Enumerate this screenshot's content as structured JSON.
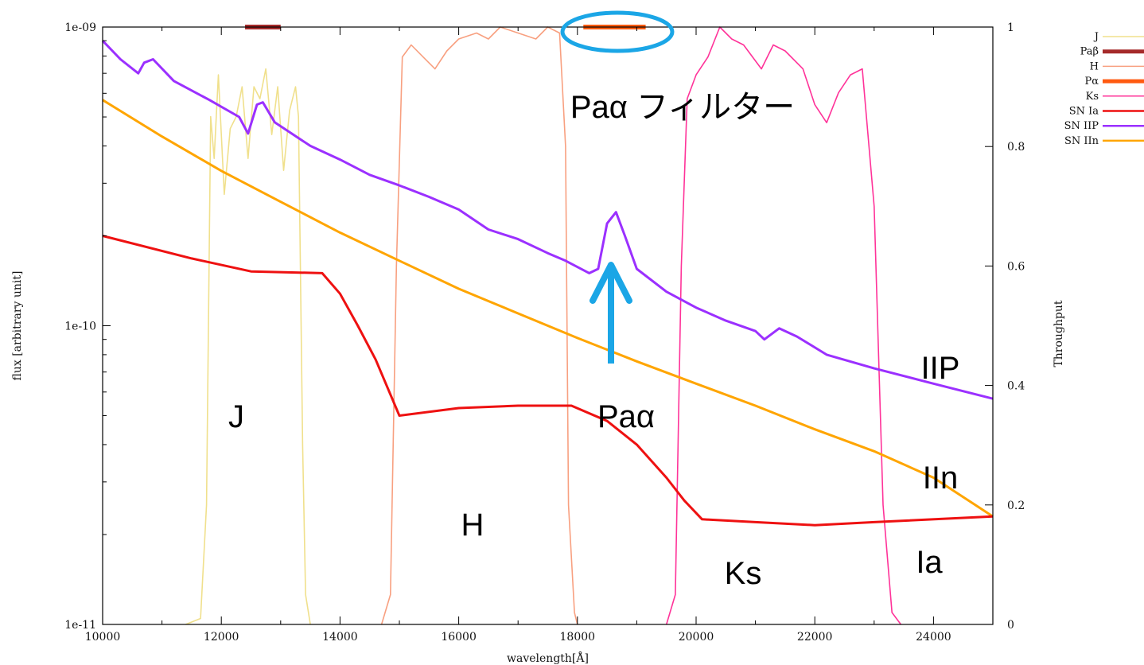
{
  "chart_data": {
    "type": "line",
    "xlabel": "wavelength[Å]",
    "ylabel": "flux [arbitrary unit]",
    "y2label": "Throughput",
    "xlim": [
      10000,
      25000
    ],
    "ylim": [
      1e-11,
      1e-09
    ],
    "yscale": "log",
    "y2lim": [
      0,
      1
    ],
    "grid": false,
    "legend_position": "top-right (outside plot)",
    "x_ticks": [
      "10000",
      "12000",
      "14000",
      "16000",
      "18000",
      "20000",
      "22000",
      "24000"
    ],
    "y_ticks": [
      "1e-11",
      "1e-10",
      "1e-09"
    ],
    "y2_ticks": [
      "0",
      "0.2",
      "0.4",
      "0.6",
      "0.8",
      "1"
    ],
    "legend": [
      {
        "label": "J",
        "color": "#f0e08c",
        "style": "thin"
      },
      {
        "label": "Paβ",
        "color": "#a52a2a",
        "style": "bar"
      },
      {
        "label": "H",
        "color": "#f8a080",
        "style": "thin"
      },
      {
        "label": "Pα",
        "color": "#ff5a10",
        "style": "bar"
      },
      {
        "label": "Ks",
        "color": "#ff3399",
        "style": "thin"
      },
      {
        "label": "SN Ia",
        "color": "#ee1111",
        "style": "thick"
      },
      {
        "label": "SN IIP",
        "color": "#9b30ff",
        "style": "thick"
      },
      {
        "label": "SN IIn",
        "color": "#ffa500",
        "style": "thick"
      }
    ],
    "series": [
      {
        "name": "SN IIP",
        "axis": "left",
        "color": "#9b30ff",
        "points": [
          [
            10000,
            9e-10
          ],
          [
            10300,
            7.8e-10
          ],
          [
            10600,
            7e-10
          ],
          [
            10700,
            7.6e-10
          ],
          [
            10850,
            7.8e-10
          ],
          [
            11200,
            6.6e-10
          ],
          [
            11800,
            5.7e-10
          ],
          [
            12300,
            5e-10
          ],
          [
            12450,
            4.4e-10
          ],
          [
            12600,
            5.5e-10
          ],
          [
            12700,
            5.6e-10
          ],
          [
            12900,
            4.8e-10
          ],
          [
            13500,
            4e-10
          ],
          [
            14000,
            3.6e-10
          ],
          [
            14500,
            3.2e-10
          ],
          [
            15000,
            2.95e-10
          ],
          [
            15500,
            2.7e-10
          ],
          [
            16000,
            2.45e-10
          ],
          [
            16500,
            2.1e-10
          ],
          [
            17000,
            1.95e-10
          ],
          [
            17500,
            1.75e-10
          ],
          [
            17800,
            1.65e-10
          ],
          [
            18200,
            1.5e-10
          ],
          [
            18350,
            1.55e-10
          ],
          [
            18500,
            2.2e-10
          ],
          [
            18650,
            2.4e-10
          ],
          [
            18800,
            2e-10
          ],
          [
            19000,
            1.55e-10
          ],
          [
            19500,
            1.3e-10
          ],
          [
            20000,
            1.15e-10
          ],
          [
            20500,
            1.04e-10
          ],
          [
            21000,
            9.6e-11
          ],
          [
            21150,
            9e-11
          ],
          [
            21400,
            9.8e-11
          ],
          [
            21700,
            9.2e-11
          ],
          [
            22200,
            8e-11
          ],
          [
            23000,
            7.2e-11
          ],
          [
            24000,
            6.4e-11
          ],
          [
            25000,
            5.7e-11
          ]
        ]
      },
      {
        "name": "SN IIn",
        "axis": "left",
        "color": "#ffa500",
        "points": [
          [
            10000,
            5.7e-10
          ],
          [
            11000,
            4.3e-10
          ],
          [
            12000,
            3.3e-10
          ],
          [
            13000,
            2.6e-10
          ],
          [
            14000,
            2.05e-10
          ],
          [
            15000,
            1.65e-10
          ],
          [
            16000,
            1.33e-10
          ],
          [
            17000,
            1.1e-10
          ],
          [
            18000,
            9.1e-11
          ],
          [
            19000,
            7.6e-11
          ],
          [
            20000,
            6.4e-11
          ],
          [
            21000,
            5.4e-11
          ],
          [
            22000,
            4.5e-11
          ],
          [
            23000,
            3.8e-11
          ],
          [
            24000,
            3.1e-11
          ],
          [
            25000,
            2.3e-11
          ]
        ]
      },
      {
        "name": "SN Ia",
        "axis": "left",
        "color": "#ee1111",
        "points": [
          [
            10000,
            2e-10
          ],
          [
            11500,
            1.68e-10
          ],
          [
            12500,
            1.52e-10
          ],
          [
            13700,
            1.5e-10
          ],
          [
            14000,
            1.28e-10
          ],
          [
            14300,
            1e-10
          ],
          [
            14600,
            7.7e-11
          ],
          [
            15000,
            5e-11
          ],
          [
            16000,
            5.3e-11
          ],
          [
            17000,
            5.4e-11
          ],
          [
            17900,
            5.4e-11
          ],
          [
            18500,
            4.8e-11
          ],
          [
            19000,
            4e-11
          ],
          [
            19500,
            3.1e-11
          ],
          [
            19800,
            2.6e-11
          ],
          [
            20100,
            2.25e-11
          ],
          [
            21000,
            2.2e-11
          ],
          [
            22000,
            2.15e-11
          ],
          [
            23000,
            2.2e-11
          ],
          [
            25000,
            2.3e-11
          ]
        ]
      },
      {
        "name": "J",
        "axis": "right",
        "color": "#f0e08c",
        "points": [
          [
            11400,
            0
          ],
          [
            11650,
            0.01
          ],
          [
            11750,
            0.2
          ],
          [
            11820,
            0.85
          ],
          [
            11880,
            0.78
          ],
          [
            11950,
            0.92
          ],
          [
            12050,
            0.72
          ],
          [
            12150,
            0.83
          ],
          [
            12250,
            0.85
          ],
          [
            12350,
            0.9
          ],
          [
            12450,
            0.78
          ],
          [
            12550,
            0.9
          ],
          [
            12650,
            0.88
          ],
          [
            12750,
            0.93
          ],
          [
            12850,
            0.82
          ],
          [
            12950,
            0.9
          ],
          [
            13050,
            0.76
          ],
          [
            13150,
            0.86
          ],
          [
            13250,
            0.9
          ],
          [
            13300,
            0.85
          ],
          [
            13370,
            0.3
          ],
          [
            13420,
            0.05
          ],
          [
            13500,
            0
          ]
        ]
      },
      {
        "name": "H",
        "axis": "right",
        "color": "#f8a080",
        "points": [
          [
            14700,
            0
          ],
          [
            14850,
            0.05
          ],
          [
            14950,
            0.6
          ],
          [
            15050,
            0.95
          ],
          [
            15200,
            0.97
          ],
          [
            15400,
            0.95
          ],
          [
            15600,
            0.93
          ],
          [
            15800,
            0.96
          ],
          [
            16000,
            0.98
          ],
          [
            16300,
            0.99
          ],
          [
            16500,
            0.98
          ],
          [
            16700,
            1.0
          ],
          [
            17000,
            0.99
          ],
          [
            17300,
            0.98
          ],
          [
            17500,
            1.0
          ],
          [
            17700,
            0.99
          ],
          [
            17800,
            0.8
          ],
          [
            17850,
            0.2
          ],
          [
            17950,
            0.02
          ],
          [
            18000,
            0
          ]
        ]
      },
      {
        "name": "Ks",
        "axis": "right",
        "color": "#ff3399",
        "points": [
          [
            19500,
            0
          ],
          [
            19650,
            0.05
          ],
          [
            19750,
            0.6
          ],
          [
            19850,
            0.88
          ],
          [
            20000,
            0.92
          ],
          [
            20200,
            0.95
          ],
          [
            20400,
            1.0
          ],
          [
            20600,
            0.98
          ],
          [
            20800,
            0.97
          ],
          [
            21100,
            0.93
          ],
          [
            21300,
            0.97
          ],
          [
            21500,
            0.96
          ],
          [
            21800,
            0.93
          ],
          [
            22000,
            0.87
          ],
          [
            22200,
            0.84
          ],
          [
            22400,
            0.89
          ],
          [
            22600,
            0.92
          ],
          [
            22800,
            0.93
          ],
          [
            23000,
            0.7
          ],
          [
            23150,
            0.2
          ],
          [
            23300,
            0.02
          ],
          [
            23450,
            0
          ]
        ]
      },
      {
        "name": "Paβ",
        "axis": "marker",
        "color": "#a52a2a",
        "range": [
          12400,
          13000
        ]
      },
      {
        "name": "Pα",
        "axis": "marker",
        "color": "#ff5a10",
        "range": [
          18100,
          19150
        ]
      }
    ],
    "annotations": [
      {
        "text": "Paα フィルター",
        "x": 18700,
        "y": 7.2e-10
      },
      {
        "text": "J",
        "x": 12300,
        "y": 4.7e-11
      },
      {
        "text": "Paα",
        "x": 18700,
        "y": 4.7e-11
      },
      {
        "text": "IIP",
        "x": 23900,
        "y": 6.6e-11
      },
      {
        "text": "IIn",
        "x": 23900,
        "y": 3.2e-11
      },
      {
        "text": "H",
        "x": 16250,
        "y": 2.2e-11
      },
      {
        "text": "Ks",
        "x": 20500,
        "y": 1.4e-11
      },
      {
        "text": "Ia",
        "x": 23900,
        "y": 1.55e-11
      }
    ]
  }
}
